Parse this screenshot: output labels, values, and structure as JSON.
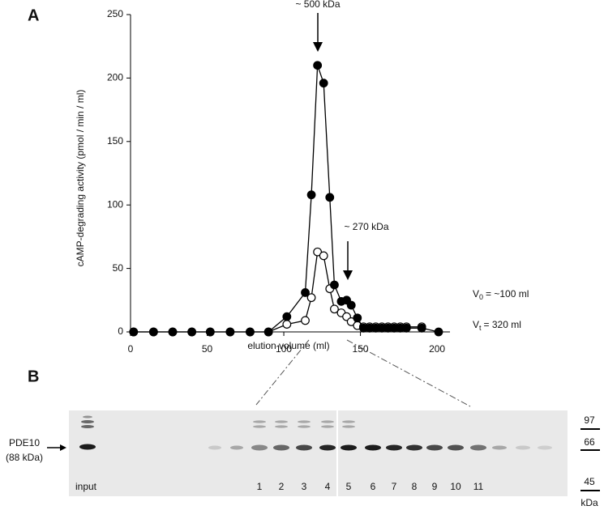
{
  "chart_data": {
    "type": "line",
    "panel_label": "A",
    "x_label": "elution volume (ml)",
    "y_label": "cAMP-degrading activity (pmol / min / ml)",
    "xlim": [
      0,
      210
    ],
    "xticks": [
      0,
      50,
      100,
      150,
      200
    ],
    "ylim": [
      0,
      250
    ],
    "yticks": [
      0,
      50,
      100,
      150,
      200,
      250
    ],
    "series": [
      {
        "color": "#000000",
        "x": [
          2,
          15,
          27.5,
          40,
          52,
          65,
          78,
          90,
          102,
          114,
          118,
          122,
          126,
          130,
          133,
          137.5,
          141,
          144,
          148,
          152,
          156,
          160,
          164,
          168,
          172,
          176,
          180,
          190,
          201
        ],
        "values": [
          0,
          0,
          0,
          0,
          0,
          0,
          0,
          0,
          12,
          31,
          108,
          210,
          196,
          106,
          37,
          24,
          25,
          21,
          11,
          3,
          3,
          3,
          3,
          3,
          3,
          3,
          3,
          3,
          0
        ]
      },
      {
        "color": "#ffffff",
        "x": [
          2,
          15,
          27.5,
          40,
          52,
          65,
          78,
          90,
          102,
          114,
          118,
          122,
          126,
          130,
          133,
          137.5,
          141,
          144,
          148,
          152,
          156,
          160,
          164,
          168,
          172,
          176,
          180,
          190
        ],
        "values": [
          0,
          0,
          0,
          0,
          0,
          0,
          0,
          0,
          6,
          9,
          27,
          63,
          60,
          34,
          18,
          15,
          12,
          8,
          5,
          4,
          4,
          4,
          4,
          4,
          4,
          4,
          4,
          4
        ]
      }
    ],
    "annotations": [
      "~ 500 kDa",
      "~ 270 kDa"
    ],
    "v0": {
      "symbol": "V",
      "sub": "0",
      "text": "= ~100 ml"
    },
    "vt": {
      "symbol": "V",
      "sub": "t",
      "text": "=   320 ml"
    }
  },
  "blot": {
    "panel_label": "B",
    "protein": "PDE10",
    "protein_size": "(88 kDa)",
    "input_label": "input",
    "lanes": [
      "1",
      "2",
      "3",
      "4",
      "5",
      "6",
      "7",
      "8",
      "9",
      "10",
      "11"
    ],
    "markers": [
      "97",
      "66",
      "45"
    ],
    "marker_unit": "kDa"
  }
}
